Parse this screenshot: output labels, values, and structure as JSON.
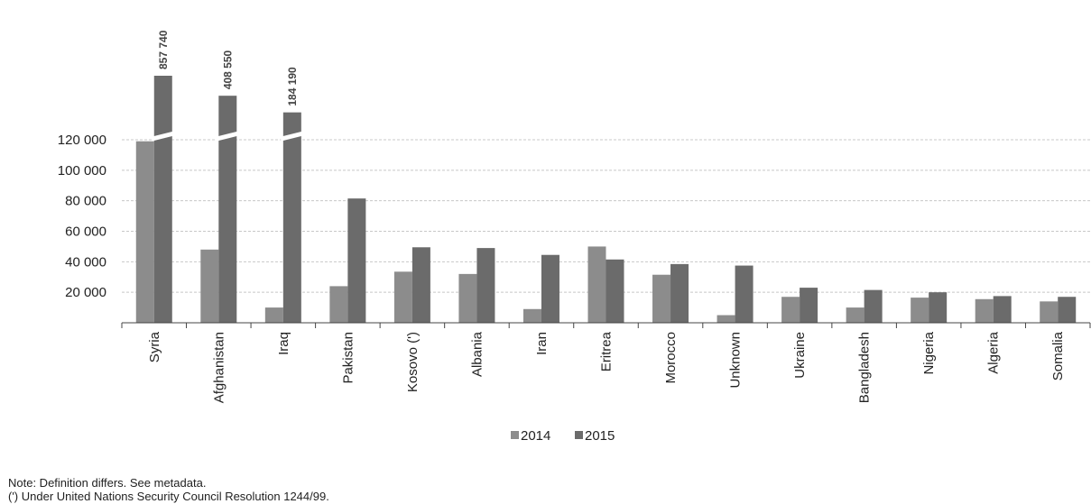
{
  "chart_data": {
    "type": "bar",
    "title": "",
    "xlabel": "",
    "ylabel": "",
    "categories": [
      "Syria",
      "Afghanistan",
      "Iraq",
      "Pakistan",
      "Kosovo (')",
      "Albania",
      "Iran",
      "Eritrea",
      "Morocco",
      "Unknown",
      "Ukraine",
      "Bangladesh",
      "Nigeria",
      "Algeria",
      "Somalia"
    ],
    "series": [
      {
        "name": "2014",
        "color": "#8c8c8c",
        "values": [
          119000,
          48000,
          10000,
          24000,
          33500,
          32000,
          9000,
          50000,
          31500,
          5000,
          17000,
          10000,
          16500,
          15500,
          14000
        ]
      },
      {
        "name": "2015",
        "color": "#6b6b6b",
        "values": [
          857740,
          408550,
          184190,
          81500,
          49500,
          49000,
          44500,
          41500,
          38500,
          37500,
          23000,
          21500,
          20000,
          17500,
          17000
        ]
      }
    ],
    "value_labels": [
      {
        "category": "Syria",
        "series": "2015",
        "text": "857 740"
      },
      {
        "category": "Afghanistan",
        "series": "2015",
        "text": "408 550"
      },
      {
        "category": "Iraq",
        "series": "2015",
        "text": "184 190"
      }
    ],
    "yticks": [
      20000,
      40000,
      60000,
      80000,
      100000,
      120000
    ],
    "ytick_labels": [
      "20 000",
      "40 000",
      "60 000",
      "80 000",
      "100 000",
      "120 000"
    ],
    "ylim": [
      0,
      120000
    ],
    "axis_break": "above 120 000",
    "grid": "horizontal dashed",
    "legend_position": "bottom-center"
  },
  "notes": [
    "Note: Definition differs. See metadata.",
    "(') Under United Nations Security Council Resolution 1244/99."
  ]
}
